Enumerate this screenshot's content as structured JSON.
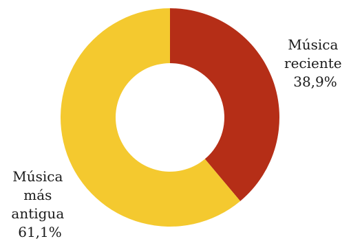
{
  "chart_data": {
    "type": "pie",
    "donut": true,
    "slices": [
      {
        "name": "Música reciente",
        "value": 38.9,
        "label_lines": [
          "Música",
          "reciente",
          "38,9%"
        ],
        "color": "#b52e17"
      },
      {
        "name": "Música más antigua",
        "value": 61.1,
        "label_lines": [
          "Música",
          "más",
          "antigua",
          "61,1%"
        ],
        "color": "#f4c92f"
      }
    ],
    "start": "top",
    "direction": "clockwise",
    "title": "",
    "legend": "none"
  }
}
